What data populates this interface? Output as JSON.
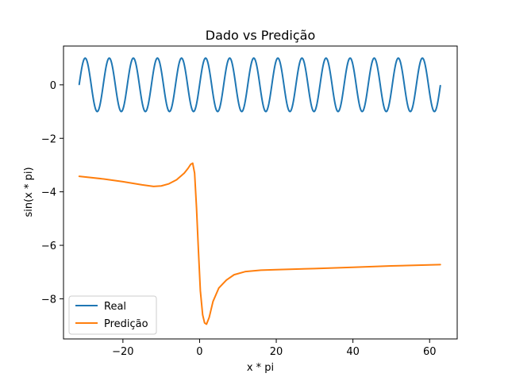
{
  "chart_data": {
    "type": "line",
    "title": "Dado vs Predição",
    "xlabel": "x * pi",
    "ylabel": "sin(x * pi)",
    "xlim": [
      -35.5,
      67.2
    ],
    "ylim": [
      -9.5,
      1.45
    ],
    "xticks": [
      -20,
      0,
      20,
      40,
      60
    ],
    "yticks": [
      -8,
      -6,
      -4,
      -2,
      0
    ],
    "xtick_labels": [
      "−20",
      "0",
      "20",
      "40",
      "60"
    ],
    "ytick_labels": [
      "−8",
      "−6",
      "−4",
      "−2",
      "0"
    ],
    "grid": false,
    "legend_position": "lower-left",
    "series": [
      {
        "name": "Real",
        "color": "#1f77b4",
        "function": "sin(x)",
        "x_range": [
          -31.4,
          62.8
        ],
        "points": 600
      },
      {
        "name": "Predição",
        "color": "#ff7f0e",
        "x": [
          -31.4,
          -25,
          -20,
          -15,
          -12,
          -10,
          -8,
          -6,
          -4,
          -3,
          -2.3,
          -1.8,
          -1.3,
          -0.8,
          -0.3,
          0.2,
          0.8,
          1.3,
          1.8,
          2.5,
          3.5,
          5,
          7,
          9,
          12,
          16,
          20,
          30,
          40,
          50,
          62.8
        ],
        "y": [
          -3.42,
          -3.52,
          -3.62,
          -3.74,
          -3.8,
          -3.78,
          -3.7,
          -3.55,
          -3.3,
          -3.12,
          -2.97,
          -2.93,
          -3.3,
          -4.6,
          -6.2,
          -7.7,
          -8.6,
          -8.9,
          -8.95,
          -8.7,
          -8.1,
          -7.6,
          -7.3,
          -7.1,
          -6.98,
          -6.93,
          -6.91,
          -6.87,
          -6.82,
          -6.77,
          -6.72
        ]
      }
    ]
  }
}
